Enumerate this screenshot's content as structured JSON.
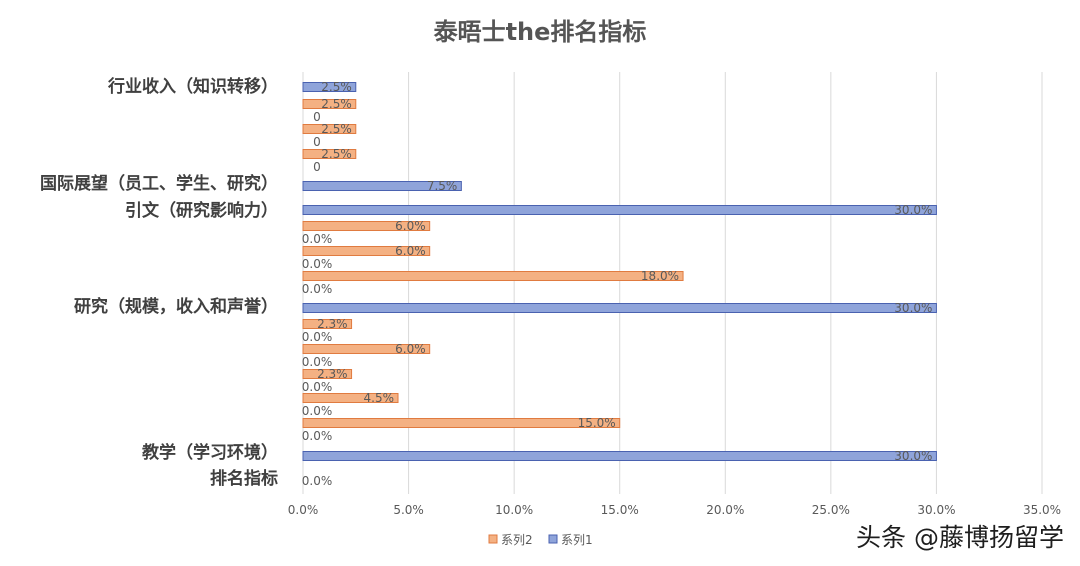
{
  "watermark": "头条 @藤博扬留学",
  "chart_data": {
    "type": "bar",
    "orientation": "horizontal",
    "title": "泰晤士the排名指标",
    "xlim": [
      0,
      35
    ],
    "x_tick_labels": [
      "0.0%",
      "5.0%",
      "10.0%",
      "15.0%",
      "20.0%",
      "25.0%",
      "30.0%",
      "35.0%"
    ],
    "x_ticks": [
      0,
      5,
      10,
      15,
      20,
      25,
      30,
      35
    ],
    "grid": true,
    "legend_position": "bottom",
    "series_colors": {
      "系列1": "#8FA4DA",
      "系列2": "#F4B183"
    },
    "series_edge_colors": {
      "系列1": "#4A62B0",
      "系列2": "#E07B40"
    },
    "rows": [
      {
        "category": "行业收入（知识转移）",
        "bars": [
          {
            "series": "系列1",
            "value": 2.5,
            "label": "2.5%"
          }
        ]
      },
      {
        "category": "",
        "bars": [
          {
            "series": "系列2",
            "value": 2.5,
            "label": "2.5%"
          },
          {
            "series": "系列1",
            "value": 0,
            "label": "0"
          }
        ]
      },
      {
        "category": "",
        "bars": [
          {
            "series": "系列2",
            "value": 2.5,
            "label": "2.5%"
          },
          {
            "series": "系列1",
            "value": 0,
            "label": "0"
          }
        ]
      },
      {
        "category": "",
        "bars": [
          {
            "series": "系列2",
            "value": 2.5,
            "label": "2.5%"
          },
          {
            "series": "系列1",
            "value": 0,
            "label": "0"
          }
        ]
      },
      {
        "category": "国际展望（员工、学生、研究）",
        "bars": [
          {
            "series": "系列1",
            "value": 7.5,
            "label": "7.5%"
          }
        ]
      },
      {
        "category": "引文（研究影响力）",
        "bars": [
          {
            "series": "系列1",
            "value": 30,
            "label": "30.0%"
          }
        ]
      },
      {
        "category": "",
        "bars": [
          {
            "series": "系列2",
            "value": 6,
            "label": "6.0%"
          },
          {
            "series": "系列1",
            "value": 0,
            "label": "0.0%"
          }
        ]
      },
      {
        "category": "",
        "bars": [
          {
            "series": "系列2",
            "value": 6,
            "label": "6.0%"
          },
          {
            "series": "系列1",
            "value": 0,
            "label": "0.0%"
          }
        ]
      },
      {
        "category": "",
        "bars": [
          {
            "series": "系列2",
            "value": 18,
            "label": "18.0%"
          },
          {
            "series": "系列1",
            "value": 0,
            "label": "0.0%"
          }
        ]
      },
      {
        "category": "研究（规模，收入和声誉）",
        "bars": [
          {
            "series": "系列1",
            "value": 30,
            "label": "30.0%"
          }
        ]
      },
      {
        "category": "",
        "bars": [
          {
            "series": "系列2",
            "value": 2.3,
            "label": "2.3%"
          },
          {
            "series": "系列1",
            "value": 0,
            "label": "0.0%"
          }
        ]
      },
      {
        "category": "",
        "bars": [
          {
            "series": "系列2",
            "value": 6,
            "label": "6.0%"
          },
          {
            "series": "系列1",
            "value": 0,
            "label": "0.0%"
          }
        ]
      },
      {
        "category": "",
        "bars": [
          {
            "series": "系列2",
            "value": 2.3,
            "label": "2.3%"
          },
          {
            "series": "系列1",
            "value": 0,
            "label": "0.0%"
          }
        ]
      },
      {
        "category": "",
        "bars": [
          {
            "series": "系列2",
            "value": 4.5,
            "label": "4.5%"
          },
          {
            "series": "系列1",
            "value": 0,
            "label": "0.0%"
          }
        ]
      },
      {
        "category": "",
        "bars": [
          {
            "series": "系列2",
            "value": 15,
            "label": "15.0%"
          },
          {
            "series": "系列1",
            "value": 0,
            "label": "0.0%"
          }
        ]
      },
      {
        "category": "教学（学习环境）",
        "bars": [
          {
            "series": "系列1",
            "value": 30,
            "label": "30.0%"
          }
        ]
      },
      {
        "category": "排名指标",
        "bars": [
          {
            "series": "系列1",
            "value": 0,
            "label": "0.0%"
          }
        ]
      }
    ],
    "legend": [
      "系列2",
      "系列1"
    ]
  }
}
